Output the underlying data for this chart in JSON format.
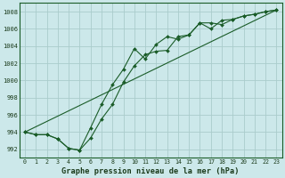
{
  "title": "Graphe pression niveau de la mer (hPa)",
  "background_color": "#cce8ea",
  "plot_bg_color": "#cce8ea",
  "grid_color": "#aacccc",
  "line_color": "#1a5c28",
  "x_ticks": [
    0,
    1,
    2,
    3,
    4,
    5,
    6,
    7,
    8,
    9,
    10,
    11,
    12,
    13,
    14,
    15,
    16,
    17,
    18,
    19,
    20,
    21,
    22,
    23
  ],
  "ylim": [
    991.0,
    1009.0
  ],
  "yticks": [
    992,
    994,
    996,
    998,
    1000,
    1002,
    1004,
    1006,
    1008
  ],
  "line1_x": [
    0,
    1,
    2,
    3,
    4,
    5,
    6,
    7,
    8,
    9,
    10,
    11,
    12,
    13,
    14,
    15,
    16,
    17,
    18,
    19,
    20,
    21,
    22,
    23
  ],
  "line1_y": [
    994.0,
    993.7,
    993.7,
    993.2,
    992.1,
    991.9,
    993.3,
    995.5,
    997.2,
    999.8,
    1001.7,
    1003.0,
    1003.4,
    1003.5,
    1005.1,
    1005.3,
    1006.7,
    1006.7,
    1006.5,
    1007.1,
    1007.5,
    1007.7,
    1008.0,
    1008.2
  ],
  "line2_x": [
    0,
    1,
    2,
    3,
    4,
    5,
    6,
    7,
    8,
    9,
    10,
    11,
    12,
    13,
    14,
    15,
    16,
    17,
    18,
    19,
    20,
    21,
    22,
    23
  ],
  "line2_y": [
    994.0,
    993.7,
    993.7,
    993.2,
    992.1,
    991.9,
    994.5,
    997.2,
    999.5,
    1001.3,
    1003.7,
    1002.5,
    1004.2,
    1005.1,
    1004.8,
    1005.3,
    1006.7,
    1006.0,
    1007.0,
    1007.1,
    1007.5,
    1007.7,
    1008.0,
    1008.2
  ],
  "line3_x": [
    0,
    23
  ],
  "line3_y": [
    994.0,
    1008.2
  ]
}
